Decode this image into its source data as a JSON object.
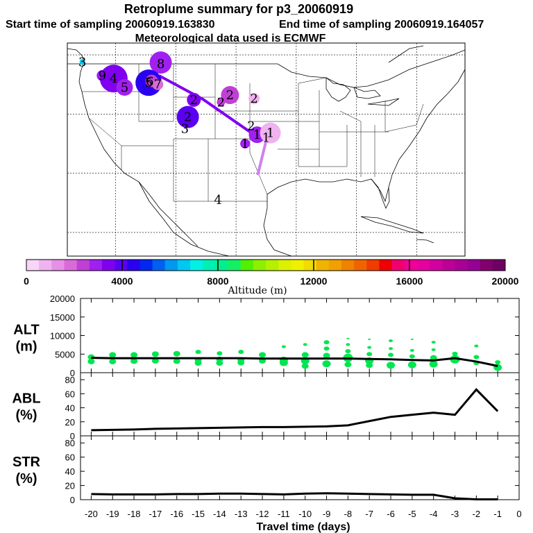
{
  "header": {
    "title": "Retroplume summary for p3_20060919",
    "start_label": "Start time of sampling 20060919.163830",
    "end_label": "End time of sampling 20060919.164057",
    "met_label": "Meteorological data used is ECMWF"
  },
  "colors": {
    "scale": [
      "#f7d6f7",
      "#efb3ef",
      "#e690e6",
      "#d96bd9",
      "#c040d6",
      "#a020f0",
      "#8000f0",
      "#5a00f0",
      "#2a00f0",
      "#0028f0",
      "#0060f0",
      "#0098f0",
      "#00c8f0",
      "#00f0e6",
      "#00f0b4",
      "#00f08c",
      "#14f064",
      "#50f000",
      "#8cf000",
      "#b4f000",
      "#dcf000",
      "#f0f000",
      "#f0dc00",
      "#f0b400",
      "#f0a000",
      "#f08200",
      "#f06400",
      "#f03c00",
      "#f00000",
      "#f0006e",
      "#f00096",
      "#e600a0",
      "#d200a0",
      "#be0096",
      "#aa0096",
      "#960096",
      "#82006e",
      "#6e0064"
    ],
    "line_traj": "#8000f0",
    "line_traj_late": "#d080f0",
    "alt_dots": "#00e650",
    "plot_line": "#000000"
  },
  "map": {
    "numbers": [
      {
        "label": "3",
        "lon": -125.5,
        "lat": 48.8
      },
      {
        "label": "9",
        "lon": -122.2,
        "lat": 46.5
      },
      {
        "label": "4",
        "lon": -120.3,
        "lat": 46.0
      },
      {
        "label": "5",
        "lon": -118.5,
        "lat": 44.5
      },
      {
        "label": "6",
        "lon": -114.3,
        "lat": 45.5
      },
      {
        "label": "5",
        "lon": -114.5,
        "lat": 45.3
      },
      {
        "label": "7",
        "lon": -113.0,
        "lat": 45.0
      },
      {
        "label": "8",
        "lon": -112.5,
        "lat": 48.5
      },
      {
        "label": "2",
        "lon": -107.0,
        "lat": 42.4
      },
      {
        "label": "2",
        "lon": -101.0,
        "lat": 43.2
      },
      {
        "label": "2",
        "lon": -102.5,
        "lat": 42.0
      },
      {
        "label": "2",
        "lon": -97.0,
        "lat": 42.6
      },
      {
        "label": "2",
        "lon": -108.0,
        "lat": 39.5
      },
      {
        "label": "3",
        "lon": -108.5,
        "lat": 37.5
      },
      {
        "label": "2",
        "lon": -97.5,
        "lat": 38.0
      },
      {
        "label": "1",
        "lon": -96.5,
        "lat": 36.5
      },
      {
        "label": "1",
        "lon": -94.3,
        "lat": 36.8
      },
      {
        "label": "1",
        "lon": -95.0,
        "lat": 36.0
      },
      {
        "label": "1",
        "lon": -98.5,
        "lat": 35.0
      },
      {
        "label": "4",
        "lon": -103.0,
        "lat": 25.5
      }
    ],
    "bubbles": [
      {
        "lon": -112.5,
        "lat": 48.7,
        "r": 16,
        "color": "#a020f0"
      },
      {
        "lon": -125.5,
        "lat": 48.8,
        "r": 4,
        "color": "#00c8f0"
      },
      {
        "lon": -122.2,
        "lat": 46.5,
        "r": 8,
        "color": "#a020f0"
      },
      {
        "lon": -120.3,
        "lat": 46.0,
        "r": 20,
        "color": "#8000f0"
      },
      {
        "lon": -118.5,
        "lat": 44.5,
        "r": 12,
        "color": "#a020f0"
      },
      {
        "lon": -114.5,
        "lat": 45.3,
        "r": 19,
        "color": "#2a00f0"
      },
      {
        "lon": -114.0,
        "lat": 45.6,
        "r": 9,
        "color": "#c040d6"
      },
      {
        "lon": -113.0,
        "lat": 45.0,
        "r": 8,
        "color": "#d96bd9"
      },
      {
        "lon": -107.0,
        "lat": 42.4,
        "r": 10,
        "color": "#8000f0"
      },
      {
        "lon": -101.0,
        "lat": 43.2,
        "r": 13,
        "color": "#c040d6"
      },
      {
        "lon": -102.5,
        "lat": 42.0,
        "r": 6,
        "color": "#c040d6"
      },
      {
        "lon": -97.0,
        "lat": 42.6,
        "r": 8,
        "color": "#efb3ef"
      },
      {
        "lon": -108.0,
        "lat": 39.5,
        "r": 16,
        "color": "#5a00f0"
      },
      {
        "lon": -96.5,
        "lat": 36.5,
        "r": 12,
        "color": "#a020f0"
      },
      {
        "lon": -94.3,
        "lat": 36.8,
        "r": 15,
        "color": "#efb3ef"
      },
      {
        "lon": -98.5,
        "lat": 35.0,
        "r": 7,
        "color": "#a020f0"
      }
    ],
    "trajectory": [
      {
        "lon": -112.8,
        "lat": 46.5
      },
      {
        "lon": -105.5,
        "lat": 42.5
      },
      {
        "lon": -97.0,
        "lat": 36.5
      },
      {
        "lon": -95.5,
        "lat": 35.8
      }
    ],
    "trajectory_tail": [
      {
        "lon": -95.0,
        "lat": 35.5
      },
      {
        "lon": -96.4,
        "lat": 29.7
      }
    ]
  },
  "colorbar": {
    "tick_labels": [
      "0",
      "4000",
      "8000",
      "12000",
      "16000",
      "20000"
    ],
    "label": "Altitude (m)"
  },
  "chart_data": [
    {
      "type": "line",
      "panel": "ALT",
      "ylabel_line1": "ALT",
      "ylabel_line2": "(m)",
      "ylim": [
        0,
        20000
      ],
      "ytick_labels": [
        "0",
        "5000",
        "10000",
        "15000",
        "20000"
      ],
      "yticks": [
        0,
        5000,
        10000,
        15000,
        20000
      ],
      "x": [
        -20,
        -19,
        -18,
        -17,
        -16,
        -15,
        -14,
        -13,
        -12,
        -11,
        -10,
        -9,
        -8,
        -7,
        -6,
        -5,
        -4,
        -3,
        -2,
        -1
      ],
      "series": [
        {
          "name": "ALT",
          "values": [
            4000,
            3900,
            3900,
            3900,
            3900,
            3900,
            3900,
            3900,
            3800,
            3800,
            3800,
            3800,
            3800,
            3700,
            3600,
            3400,
            3300,
            3900,
            3000,
            1800
          ]
        }
      ],
      "scatter": [
        {
          "x": -20,
          "y": 4200,
          "s": 4
        },
        {
          "x": -20,
          "y": 3000,
          "s": 4
        },
        {
          "x": -19,
          "y": 4800,
          "s": 4
        },
        {
          "x": -19,
          "y": 3000,
          "s": 4
        },
        {
          "x": -18,
          "y": 4800,
          "s": 4
        },
        {
          "x": -18,
          "y": 3100,
          "s": 4
        },
        {
          "x": -17,
          "y": 5000,
          "s": 4
        },
        {
          "x": -17,
          "y": 3200,
          "s": 4
        },
        {
          "x": -16,
          "y": 5100,
          "s": 4
        },
        {
          "x": -16,
          "y": 3100,
          "s": 4
        },
        {
          "x": -15,
          "y": 5600,
          "s": 3
        },
        {
          "x": -15,
          "y": 3400,
          "s": 4
        },
        {
          "x": -15,
          "y": 2600,
          "s": 4
        },
        {
          "x": -14,
          "y": 5200,
          "s": 3
        },
        {
          "x": -14,
          "y": 3600,
          "s": 4
        },
        {
          "x": -14,
          "y": 2600,
          "s": 4
        },
        {
          "x": -13,
          "y": 5600,
          "s": 3
        },
        {
          "x": -13,
          "y": 3400,
          "s": 4
        },
        {
          "x": -13,
          "y": 2700,
          "s": 4
        },
        {
          "x": -12,
          "y": 4800,
          "s": 4
        },
        {
          "x": -12,
          "y": 3200,
          "s": 4
        },
        {
          "x": -11,
          "y": 7000,
          "s": 2
        },
        {
          "x": -11,
          "y": 3400,
          "s": 5
        },
        {
          "x": -11,
          "y": 2700,
          "s": 5
        },
        {
          "x": -10,
          "y": 7600,
          "s": 2
        },
        {
          "x": -10,
          "y": 4800,
          "s": 4
        },
        {
          "x": -10,
          "y": 3200,
          "s": 5
        },
        {
          "x": -10,
          "y": 1800,
          "s": 4
        },
        {
          "x": -9,
          "y": 8200,
          "s": 3
        },
        {
          "x": -9,
          "y": 6500,
          "s": 3
        },
        {
          "x": -9,
          "y": 4600,
          "s": 4
        },
        {
          "x": -9,
          "y": 2400,
          "s": 5
        },
        {
          "x": -8,
          "y": 9200,
          "s": 1
        },
        {
          "x": -8,
          "y": 7600,
          "s": 2
        },
        {
          "x": -8,
          "y": 5800,
          "s": 3
        },
        {
          "x": -8,
          "y": 4000,
          "s": 6
        },
        {
          "x": -8,
          "y": 2200,
          "s": 4
        },
        {
          "x": -7,
          "y": 9000,
          "s": 1
        },
        {
          "x": -7,
          "y": 6800,
          "s": 2
        },
        {
          "x": -7,
          "y": 5000,
          "s": 3
        },
        {
          "x": -7,
          "y": 3200,
          "s": 5
        },
        {
          "x": -7,
          "y": 2000,
          "s": 4
        },
        {
          "x": -6,
          "y": 8600,
          "s": 2
        },
        {
          "x": -6,
          "y": 6500,
          "s": 2
        },
        {
          "x": -6,
          "y": 4800,
          "s": 3
        },
        {
          "x": -6,
          "y": 2000,
          "s": 5
        },
        {
          "x": -5,
          "y": 9000,
          "s": 1
        },
        {
          "x": -5,
          "y": 6000,
          "s": 2
        },
        {
          "x": -5,
          "y": 4400,
          "s": 3
        },
        {
          "x": -5,
          "y": 2100,
          "s": 5
        },
        {
          "x": -4,
          "y": 8200,
          "s": 2
        },
        {
          "x": -4,
          "y": 6200,
          "s": 2
        },
        {
          "x": -4,
          "y": 4000,
          "s": 4
        },
        {
          "x": -4,
          "y": 2300,
          "s": 5
        },
        {
          "x": -3,
          "y": 5100,
          "s": 3
        },
        {
          "x": -3,
          "y": 3600,
          "s": 6
        },
        {
          "x": -2,
          "y": 7200,
          "s": 2
        },
        {
          "x": -2,
          "y": 4200,
          "s": 3
        },
        {
          "x": -2,
          "y": 2600,
          "s": 3
        },
        {
          "x": -1,
          "y": 2800,
          "s": 3
        },
        {
          "x": -1,
          "y": 1400,
          "s": 5
        }
      ]
    },
    {
      "type": "line",
      "panel": "ABL",
      "ylabel_line1": "ABL",
      "ylabel_line2": "(%)",
      "ylim": [
        0,
        90
      ],
      "ytick_labels": [
        "0",
        "20",
        "40",
        "60",
        "80"
      ],
      "yticks": [
        0,
        20,
        40,
        60,
        80
      ],
      "x": [
        -20,
        -19,
        -18,
        -17,
        -16,
        -15,
        -14,
        -13,
        -12,
        -11,
        -10,
        -9,
        -8,
        -7,
        -6,
        -5,
        -4,
        -3,
        -2,
        -1
      ],
      "series": [
        {
          "name": "ABL",
          "values": [
            8,
            8.5,
            9,
            10,
            10.5,
            11,
            11.5,
            12,
            12.5,
            12.5,
            13,
            13.5,
            15,
            21,
            27,
            30,
            33,
            30,
            66,
            35
          ]
        }
      ]
    },
    {
      "type": "line",
      "panel": "STR",
      "ylabel_line1": "STR",
      "ylabel_line2": "(%)",
      "ylim": [
        0,
        90
      ],
      "ytick_labels": [
        "0",
        "20",
        "40",
        "60",
        "80"
      ],
      "yticks": [
        0,
        20,
        40,
        60,
        80
      ],
      "x": [
        -20,
        -19,
        -18,
        -17,
        -16,
        -15,
        -14,
        -13,
        -12,
        -11,
        -10,
        -9,
        -8,
        -7,
        -6,
        -5,
        -4,
        -3,
        -2,
        -1
      ],
      "series": [
        {
          "name": "STR",
          "values": [
            8,
            7.5,
            7.5,
            7.5,
            8,
            8,
            8.5,
            8.5,
            8,
            7.5,
            8.5,
            9,
            8.5,
            8,
            7.5,
            7,
            7,
            2,
            0.5,
            0.5
          ]
        }
      ]
    }
  ],
  "xaxis": {
    "tick_labels": [
      "-20",
      "-19",
      "-18",
      "-17",
      "-16",
      "-15",
      "-14",
      "-13",
      "-12",
      "-11",
      "-10",
      "-9",
      "-8",
      "-7",
      "-6",
      "-5",
      "-4",
      "-3",
      "-2",
      "-1",
      "0"
    ],
    "ticks": [
      -20,
      -19,
      -18,
      -17,
      -16,
      -15,
      -14,
      -13,
      -12,
      -11,
      -10,
      -9,
      -8,
      -7,
      -6,
      -5,
      -4,
      -3,
      -2,
      -1,
      0
    ],
    "label": "Travel time (days)",
    "range": [
      -20.5,
      0
    ]
  }
}
